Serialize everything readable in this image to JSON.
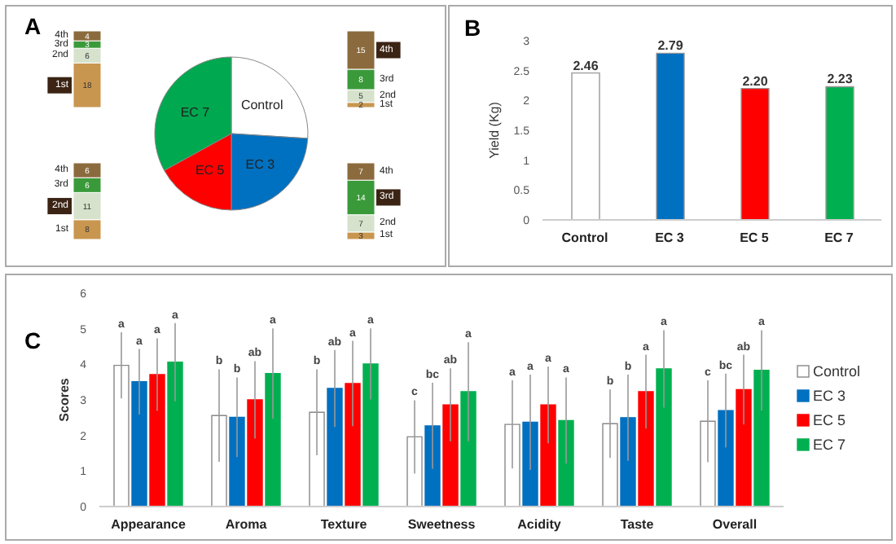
{
  "chart_data": [
    {
      "type": "pie",
      "title": "A",
      "categories": [
        "Control",
        "EC 3",
        "EC 5",
        "EC 7"
      ],
      "values": [
        26,
        24,
        17,
        33
      ],
      "colors": [
        "#ffffff",
        "#0070c0",
        "#ff0000",
        "#00a84f"
      ]
    },
    {
      "type": "bar",
      "stacked": true,
      "categories": [
        null
      ],
      "data_labels": true,
      "series": [
        {
          "name": "1st",
          "color": "#c8964f",
          "values": [
            2
          ]
        },
        {
          "name": "2nd",
          "color": "#d6e2cc",
          "values": [
            5
          ]
        },
        {
          "name": "3rd",
          "color": "#3a9a3a",
          "values": [
            8
          ]
        },
        {
          "name": "4th",
          "color": "#8b6b3d",
          "values": [
            15
          ]
        }
      ]
    },
    {
      "type": "bar",
      "stacked": true,
      "categories": [
        null
      ],
      "data_labels": true,
      "series": [
        {
          "name": "1st",
          "color": "#c8964f",
          "values": [
            3
          ]
        },
        {
          "name": "2nd",
          "color": "#d6e2cc",
          "values": [
            7
          ]
        },
        {
          "name": "3rd",
          "color": "#3a9a3a",
          "values": [
            14
          ]
        },
        {
          "name": "4th",
          "color": "#8b6b3d",
          "values": [
            7
          ]
        }
      ]
    },
    {
      "type": "bar",
      "stacked": true,
      "categories": [
        null
      ],
      "data_labels": true,
      "series": [
        {
          "name": "1st",
          "color": "#c8964f",
          "values": [
            8
          ]
        },
        {
          "name": "2nd",
          "color": "#d6e2cc",
          "values": [
            11
          ]
        },
        {
          "name": "3rd",
          "color": "#3a9a3a",
          "values": [
            6
          ]
        },
        {
          "name": "4th",
          "color": "#8b6b3d",
          "values": [
            6
          ]
        }
      ]
    },
    {
      "type": "bar",
      "stacked": true,
      "categories": [
        null
      ],
      "data_labels": true,
      "series": [
        {
          "name": "1st",
          "color": "#c8964f",
          "values": [
            18
          ]
        },
        {
          "name": "2nd",
          "color": "#d6e2cc",
          "values": [
            6
          ]
        },
        {
          "name": "3rd",
          "color": "#3a9a3a",
          "values": [
            3
          ]
        },
        {
          "name": "4th",
          "color": "#8b6b3d",
          "values": [
            4
          ]
        }
      ]
    },
    {
      "type": "bar",
      "title": "B",
      "ylabel": "Yield (Kg)",
      "categories": [
        "Control",
        "EC 3",
        "EC 5",
        "EC 7"
      ],
      "values": [
        2.46,
        2.79,
        2.2,
        2.23
      ],
      "colors": [
        "#ffffff",
        "#0070c0",
        "#ff0000",
        "#00b050"
      ],
      "value_labels": [
        "2.46",
        "2.79",
        "2.20",
        "2.23"
      ],
      "ylim": [
        0,
        3
      ],
      "yticks": [
        0,
        0.5,
        1,
        1.5,
        2,
        2.5,
        3
      ]
    },
    {
      "type": "bar",
      "title": "C",
      "ylabel": "Scores",
      "categories": [
        "Appearance",
        "Aroma",
        "Texture",
        "Sweetness",
        "Acidity",
        "Taste",
        "Overall"
      ],
      "ylim": [
        0,
        6
      ],
      "yticks": [
        0,
        1,
        2,
        3,
        4,
        5,
        6
      ],
      "legend": "right",
      "series": [
        {
          "name": "Control",
          "color": "#ffffff",
          "values": [
            3.97,
            2.56,
            2.65,
            1.96,
            2.31,
            2.33,
            2.4
          ],
          "errors": [
            0.93,
            1.3,
            1.21,
            1.03,
            1.24,
            0.96,
            1.15
          ]
        },
        {
          "name": "EC 3",
          "color": "#0070c0",
          "values": [
            3.51,
            2.51,
            3.32,
            2.27,
            2.37,
            2.5,
            2.7
          ],
          "errors": [
            0.92,
            1.12,
            1.08,
            1.21,
            1.34,
            1.21,
            1.04
          ]
        },
        {
          "name": "EC 5",
          "color": "#ff0000",
          "values": [
            3.71,
            3.0,
            3.46,
            2.86,
            2.86,
            3.23,
            3.29
          ],
          "errors": [
            1.02,
            1.09,
            1.2,
            1.03,
            1.08,
            1.04,
            0.98
          ]
        },
        {
          "name": "EC 7",
          "color": "#00b050",
          "values": [
            4.06,
            3.74,
            4.01,
            3.23,
            2.42,
            3.87,
            3.83
          ],
          "errors": [
            1.1,
            1.27,
            1.0,
            1.39,
            1.21,
            1.09,
            1.13
          ]
        }
      ],
      "annotations": [
        "a",
        "a",
        "a",
        "a",
        "b",
        "b",
        "ab",
        "a",
        "b",
        "ab",
        "a",
        "a",
        "c",
        "bc",
        "ab",
        "a",
        "a",
        "a",
        "a",
        "a",
        "b",
        "b",
        "a",
        "a",
        "c",
        "bc",
        "ab",
        "a"
      ]
    }
  ]
}
